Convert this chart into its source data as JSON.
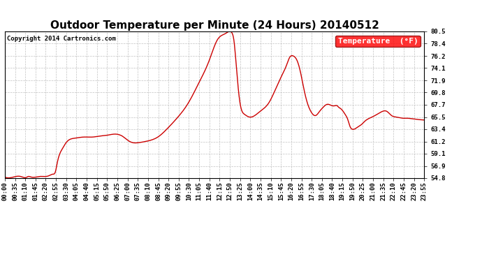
{
  "title": "Outdoor Temperature per Minute (24 Hours) 20140512",
  "copyright_text": "Copyright 2014 Cartronics.com",
  "legend_label": "Temperature  (°F)",
  "background_color": "#ffffff",
  "plot_bg_color": "#ffffff",
  "line_color": "#cc0000",
  "line_width": 1.0,
  "yticks": [
    54.8,
    56.9,
    59.1,
    61.2,
    63.4,
    65.5,
    67.7,
    69.8,
    71.9,
    74.1,
    76.2,
    78.4,
    80.5
  ],
  "xtick_labels": [
    "00:00",
    "00:35",
    "01:10",
    "01:45",
    "02:20",
    "02:55",
    "03:30",
    "04:05",
    "04:40",
    "05:15",
    "05:50",
    "06:25",
    "07:00",
    "07:35",
    "08:10",
    "08:45",
    "09:20",
    "09:55",
    "10:30",
    "11:05",
    "11:40",
    "12:15",
    "12:50",
    "13:25",
    "14:00",
    "14:35",
    "15:10",
    "15:45",
    "16:20",
    "16:55",
    "17:30",
    "18:05",
    "18:40",
    "19:15",
    "19:50",
    "20:25",
    "21:00",
    "21:35",
    "22:10",
    "22:45",
    "23:20",
    "23:55"
  ],
  "ylim_min": 54.8,
  "ylim_max": 80.5,
  "title_fontsize": 11,
  "tick_fontsize": 6.5,
  "copyright_fontsize": 6.5,
  "legend_fontsize": 8
}
